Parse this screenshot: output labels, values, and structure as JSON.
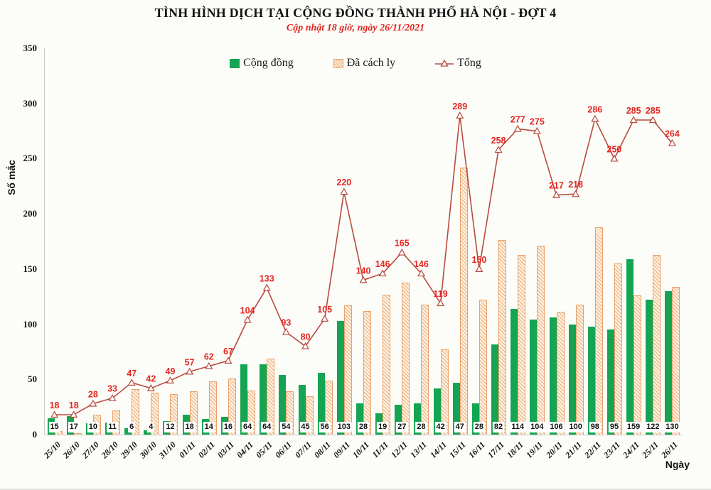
{
  "colors": {
    "background": "#fcfcf8",
    "community_bar": "#14a452",
    "quarantine_bar_border": "#e9a26b",
    "quarantine_bar_fill": "#fdf1e1",
    "total_line": "#b84b40",
    "total_label": "#e42621",
    "subtitle_red": "#e02520",
    "axis_gray": "#c9c9c9"
  },
  "chart_data": {
    "type": "combo: grouped bar + line",
    "title": "TÌNH HÌNH DỊCH TẠI CỘNG ĐỒNG THÀNH PHỐ HÀ NỘI - ĐỢT 4",
    "subtitle": "Cập nhật 18 giờ, ngày 26/11/2021",
    "xlabel": "Ngày",
    "ylabel": "Số mắc",
    "ylim": [
      0,
      350
    ],
    "yticks": [
      0,
      50,
      100,
      150,
      200,
      250,
      300,
      350
    ],
    "grid": false,
    "legend_position": "top-center",
    "categories": [
      "25/10",
      "26/10",
      "27/10",
      "28/10",
      "29/10",
      "30/10",
      "31/10",
      "01/11",
      "02/11",
      "03/11",
      "04/11",
      "05/11",
      "06/11",
      "07/11",
      "08/11",
      "09/11",
      "10/11",
      "11/11",
      "12/11",
      "13/11",
      "14/11",
      "15/11",
      "16/11",
      "17/11",
      "18/11",
      "19/11",
      "20/11",
      "21/11",
      "22/11",
      "23/11",
      "24/11",
      "25/11",
      "26/11"
    ],
    "series": [
      {
        "name": "Cộng đồng",
        "type": "bar",
        "color": "#14a452",
        "labels_shown": true,
        "values": [
          15,
          17,
          10,
          11,
          6,
          4,
          12,
          18,
          14,
          16,
          64,
          64,
          54,
          45,
          56,
          103,
          28,
          19,
          27,
          28,
          42,
          47,
          28,
          82,
          114,
          104,
          106,
          100,
          98,
          95,
          159,
          122,
          130
        ]
      },
      {
        "name": "Đã cách ly",
        "type": "bar",
        "style": "hatched",
        "color": "#e9a26b",
        "labels_shown": false,
        "values": [
          3,
          1,
          18,
          22,
          41,
          38,
          37,
          39,
          48,
          51,
          40,
          69,
          39,
          35,
          49,
          117,
          112,
          127,
          138,
          118,
          77,
          242,
          122,
          176,
          163,
          171,
          111,
          118,
          188,
          155,
          126,
          163,
          134
        ]
      },
      {
        "name": "Tổng",
        "type": "line",
        "marker": "open-triangle",
        "color": "#b84b40",
        "labels_shown": true,
        "values": [
          18,
          18,
          28,
          33,
          47,
          42,
          49,
          57,
          62,
          67,
          104,
          133,
          93,
          80,
          105,
          220,
          140,
          146,
          165,
          146,
          119,
          289,
          150,
          258,
          277,
          275,
          217,
          218,
          286,
          250,
          285,
          285,
          264
        ]
      }
    ]
  }
}
